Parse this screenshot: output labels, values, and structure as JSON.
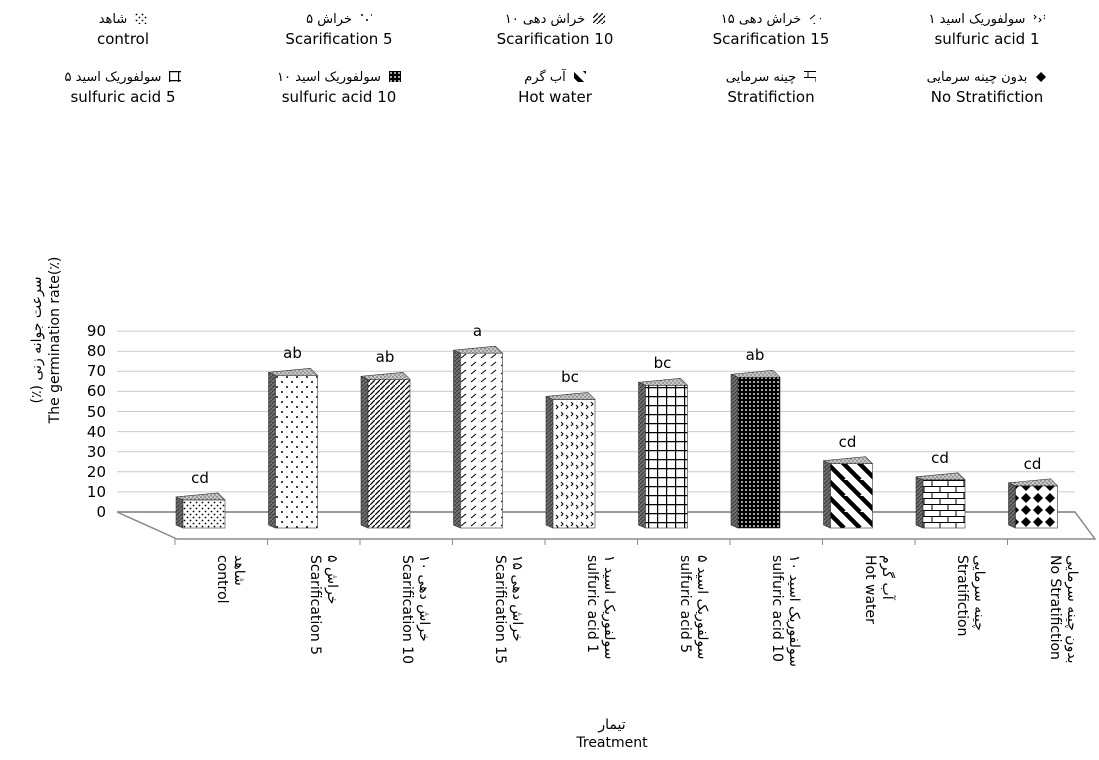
{
  "chart_data": {
    "type": "bar",
    "title": "",
    "xlabel": {
      "fa": "تیمار",
      "en": "Treatment"
    },
    "ylabel": {
      "fa": "(٪) سرعت جوانه زنی",
      "en": "The germination rate(٪)"
    },
    "ylim": [
      0,
      90
    ],
    "yticks": [
      0,
      10,
      20,
      30,
      40,
      50,
      60,
      70,
      80,
      90
    ],
    "grid": true,
    "legend_position": "top",
    "categories": [
      {
        "fa": "شاهد",
        "en": "control"
      },
      {
        "fa": "خراش ۵",
        "en": "Scarification 5"
      },
      {
        "fa": "خراش دهی ۱۰",
        "en": "Scarification 10"
      },
      {
        "fa": "خراش دهی ۱۵",
        "en": "Scarification 15"
      },
      {
        "fa": "سولفوریک اسید ۱",
        "en": "sulfuric acid 1"
      },
      {
        "fa": "سولفوریک اسید ۵",
        "en": "sulfuric acid 5"
      },
      {
        "fa": "سولفوریک اسید ۱۰",
        "en": "sulfuric acid 10"
      },
      {
        "fa": "آب گرم",
        "en": "Hot water"
      },
      {
        "fa": "چینه سرمایی",
        "en": "Stratifiction"
      },
      {
        "fa": "بدون چینه سرمایی",
        "en": "No Stratifiction"
      }
    ],
    "values": [
      10,
      72,
      70,
      83,
      60,
      67,
      71,
      28,
      20,
      17
    ],
    "significance": [
      "cd",
      "ab",
      "ab",
      "a",
      "bc",
      "bc",
      "ab",
      "cd",
      "cd",
      "cd"
    ],
    "legend": [
      {
        "fa": "شاهد",
        "en": "control",
        "pattern": "dots-small"
      },
      {
        "fa": "خراش ۵",
        "en": "Scarification 5",
        "pattern": "dots-sparse"
      },
      {
        "fa": "خراش دهی ۱۰",
        "en": "Scarification 10",
        "pattern": "diag-dense"
      },
      {
        "fa": "خراش دهی ۱۵",
        "en": "Scarification 15",
        "pattern": "dashes"
      },
      {
        "fa": "سولفوریک اسید ۱",
        "en": "sulfuric acid 1",
        "pattern": "zigzag"
      },
      {
        "fa": "سولفوریک اسید ۵",
        "en": "sulfuric acid 5",
        "pattern": "grid-large"
      },
      {
        "fa": "سولفوریک اسید ۱۰",
        "en": "sulfuric acid 10",
        "pattern": "grid-small"
      },
      {
        "fa": "آب گرم",
        "en": "Hot water",
        "pattern": "diag-wide"
      },
      {
        "fa": "چینه سرمایی",
        "en": "Stratifiction",
        "pattern": "bricks"
      },
      {
        "fa": "بدون چینه سرمایی",
        "en": "No Stratifiction",
        "pattern": "diamonds"
      }
    ],
    "colors": {
      "axis": "#8c8c8c",
      "grid": "#cccccc",
      "bar_shade": "#707070",
      "bar_top": "#bdbdbd"
    }
  }
}
